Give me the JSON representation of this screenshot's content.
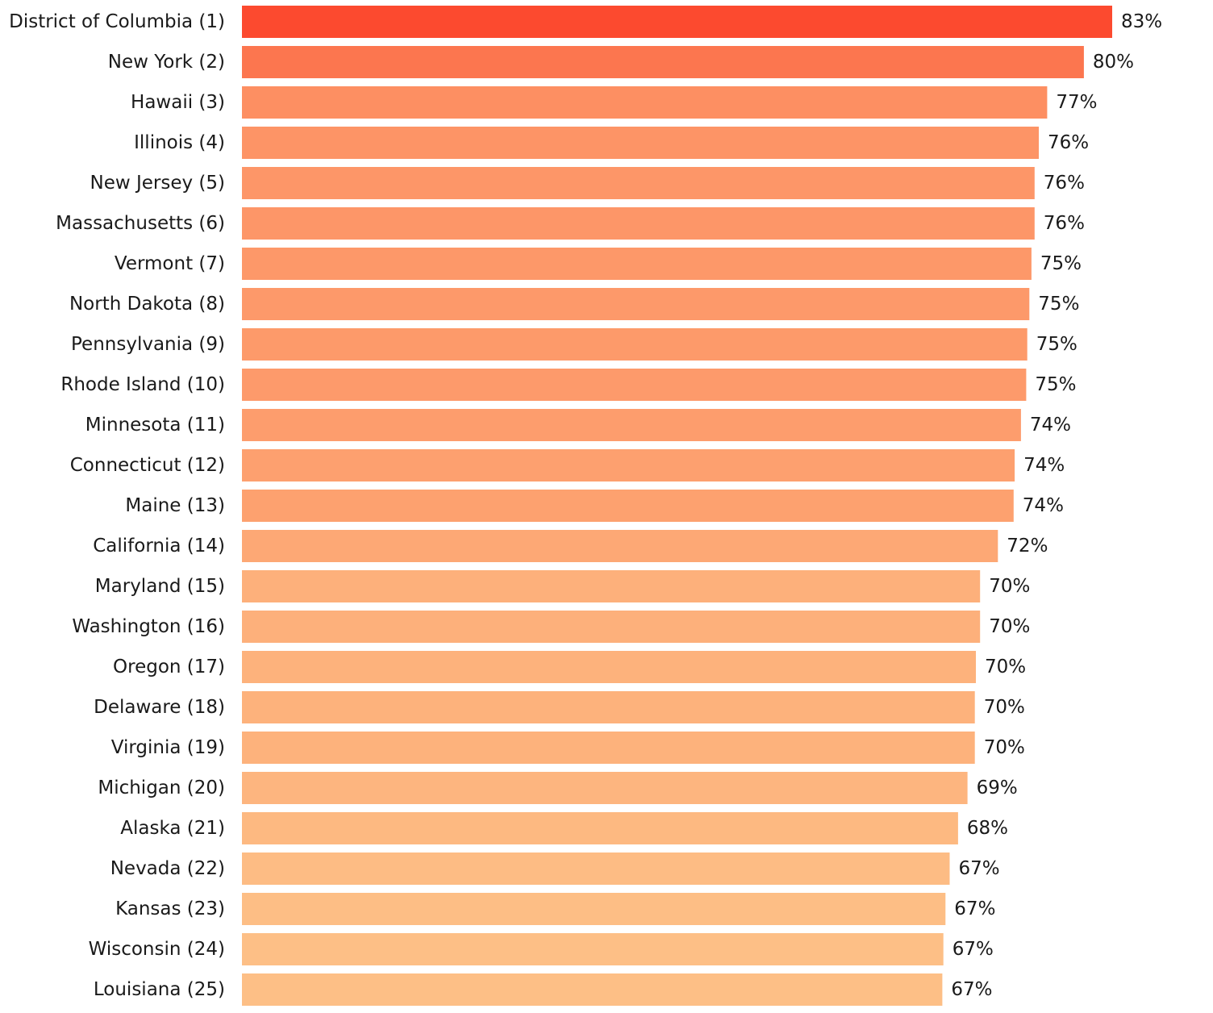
{
  "chart_data": {
    "type": "bar",
    "orientation": "horizontal",
    "title": "",
    "xlabel": "",
    "ylabel": "",
    "categories": [
      "District of Columbia (1)",
      "New York (2)",
      "Hawaii (3)",
      "Illinois (4)",
      "New Jersey (5)",
      "Massachusetts (6)",
      "Vermont (7)",
      "North Dakota (8)",
      "Pennsylvania (9)",
      "Rhode Island (10)",
      "Minnesota (11)",
      "Connecticut (12)",
      "Maine (13)",
      "California (14)",
      "Maryland (15)",
      "Washington (16)",
      "Oregon (17)",
      "Delaware (18)",
      "Virginia (19)",
      "Michigan (20)",
      "Alaska (21)",
      "Nevada (22)",
      "Kansas (23)",
      "Wisconsin (24)",
      "Louisiana (25)"
    ],
    "values": [
      83.0,
      80.3,
      76.8,
      76.0,
      75.6,
      75.6,
      75.3,
      75.1,
      74.9,
      74.8,
      74.3,
      73.7,
      73.6,
      72.1,
      70.4,
      70.4,
      70.0,
      69.9,
      69.9,
      69.2,
      68.3,
      67.5,
      67.1,
      66.9,
      66.8
    ],
    "value_labels": [
      "83%",
      "80%",
      "77%",
      "76%",
      "76%",
      "76%",
      "75%",
      "75%",
      "75%",
      "75%",
      "74%",
      "74%",
      "74%",
      "72%",
      "70%",
      "70%",
      "70%",
      "70%",
      "70%",
      "69%",
      "68%",
      "67%",
      "67%",
      "67%",
      "67%"
    ],
    "xlim": [
      0,
      83
    ],
    "grid": false,
    "legend": "none",
    "colors": {
      "high": "#fc4a2f",
      "low": "#fdbf86"
    }
  }
}
